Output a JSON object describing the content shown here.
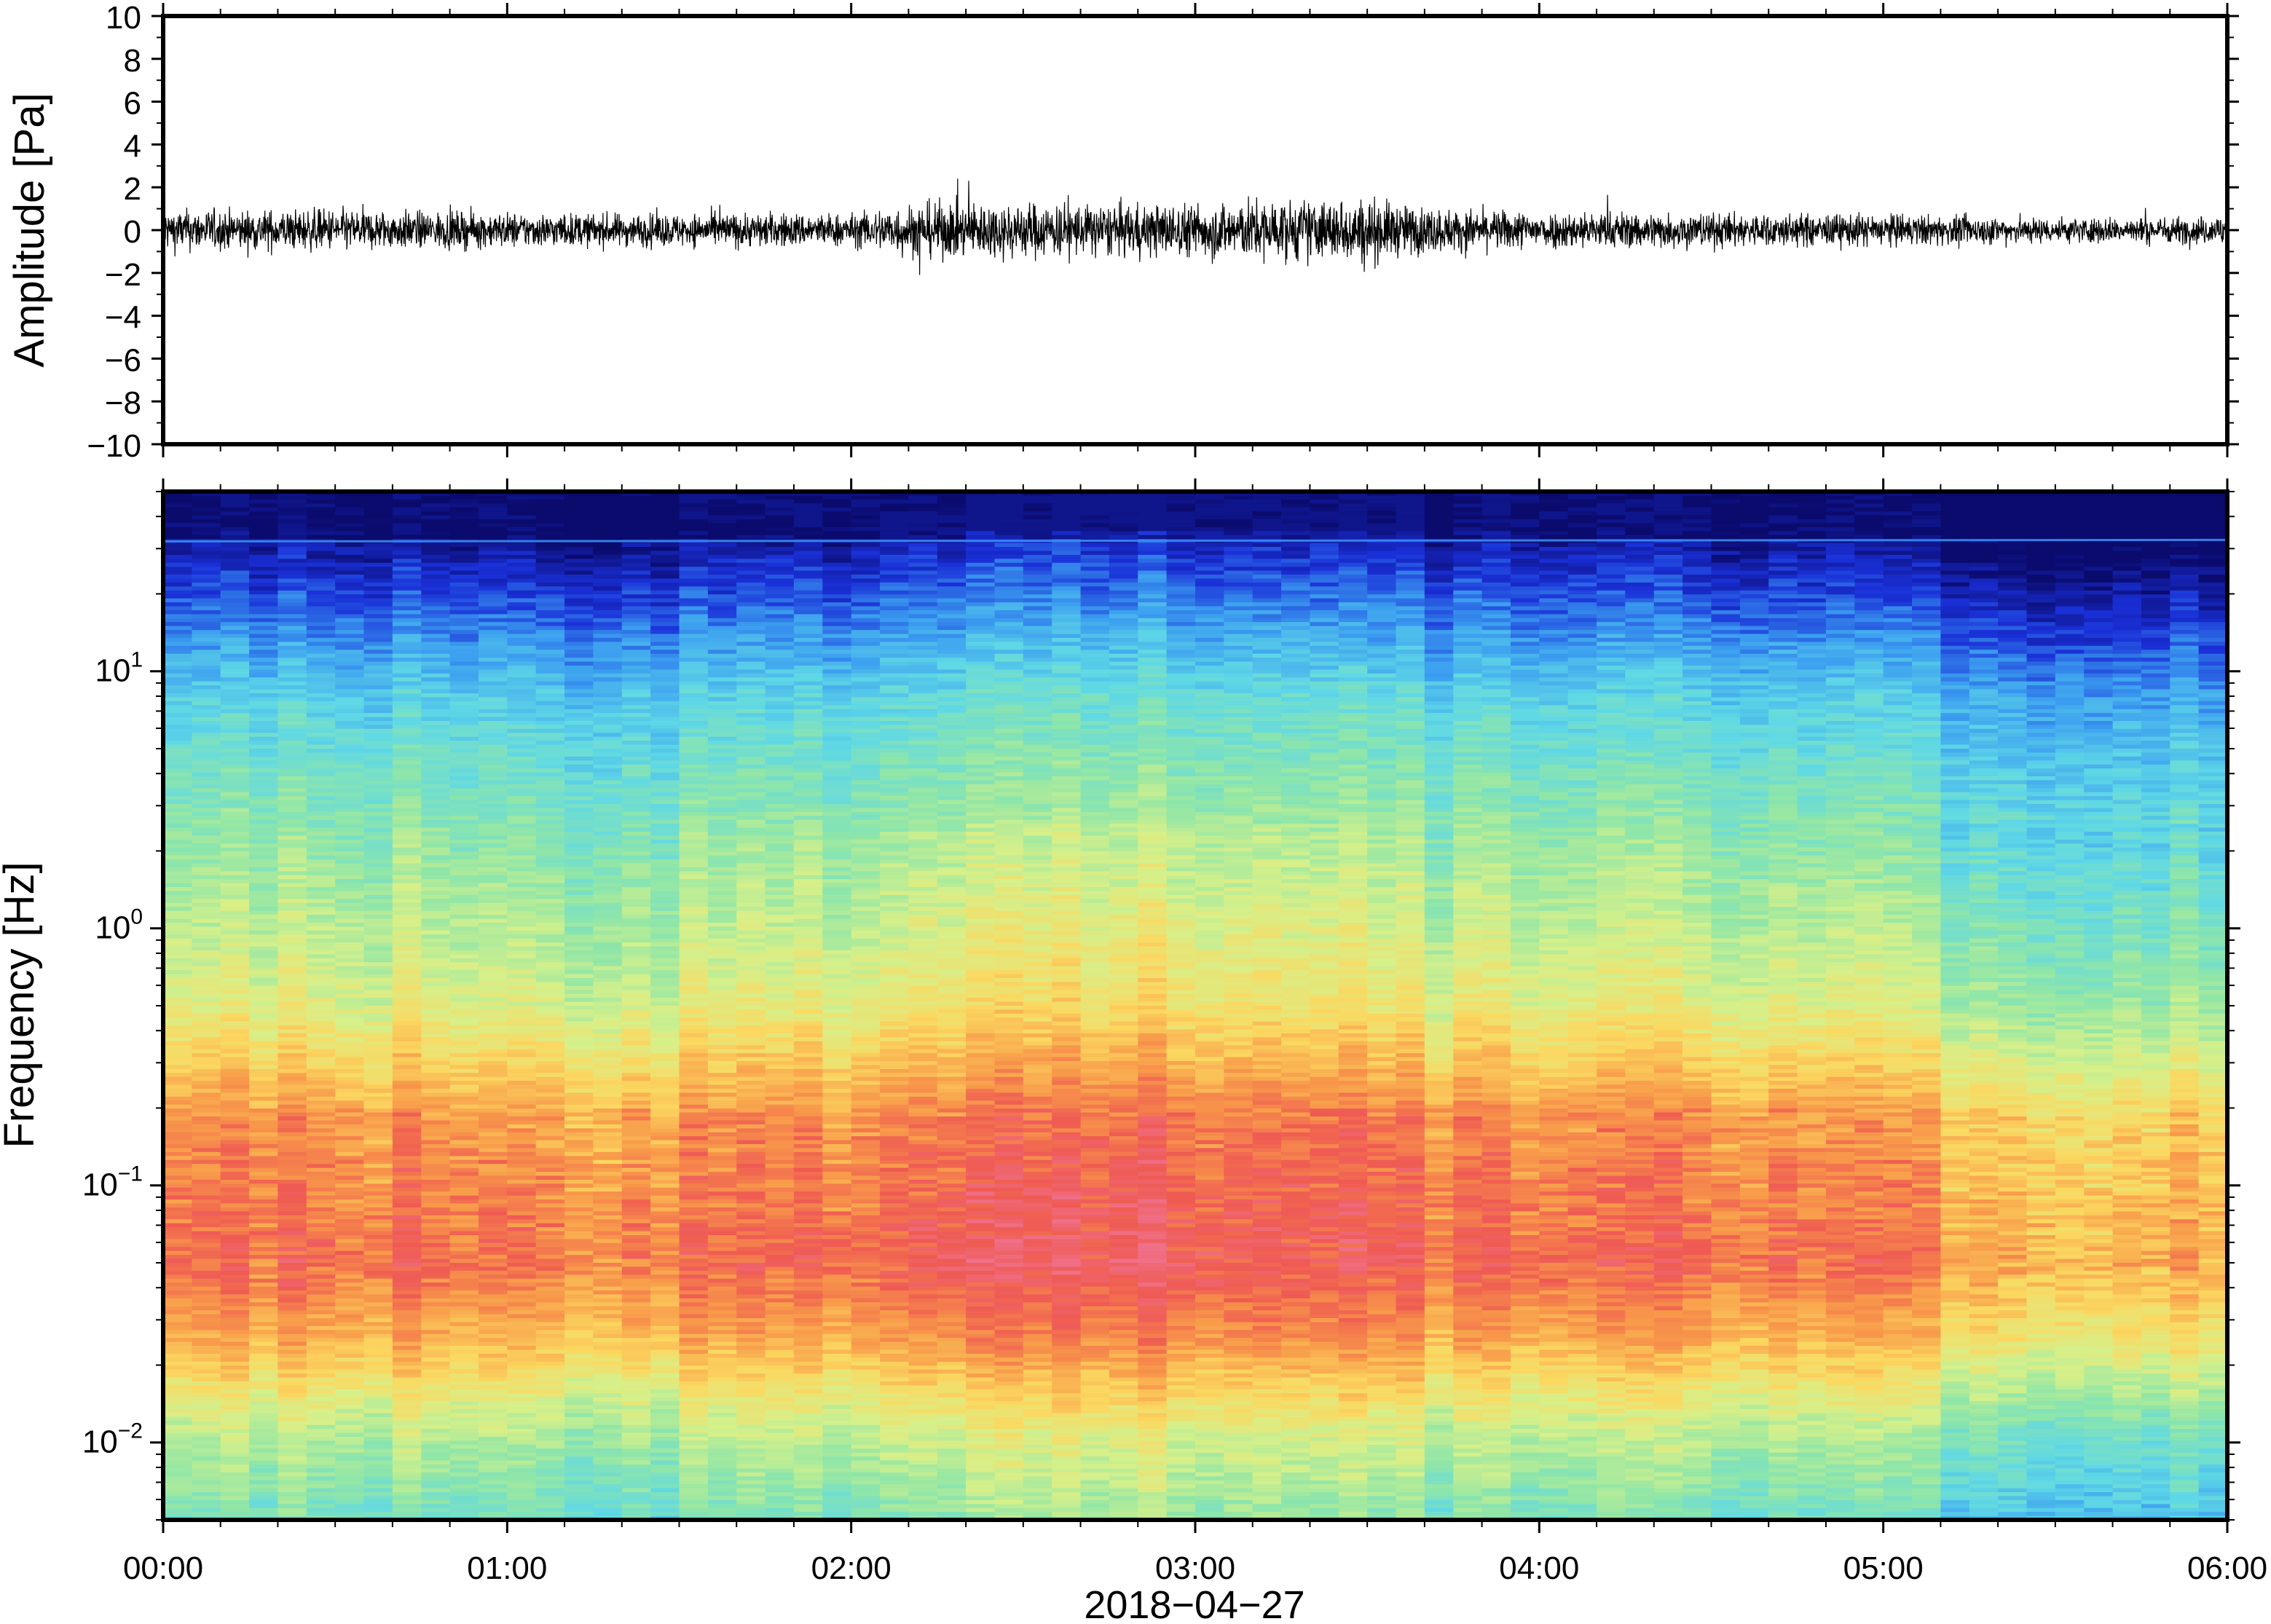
{
  "chart_data": [
    {
      "type": "line",
      "panel": "waveform",
      "ylabel": "Amplitude [Pa]",
      "ylim": [
        -10,
        10
      ],
      "yticks": [
        10,
        8,
        6,
        4,
        2,
        0,
        -2,
        -4,
        -6,
        -8,
        -10
      ],
      "ytick_labels": [
        "10",
        "8",
        "6",
        "4",
        "2",
        "0",
        "−2",
        "−4",
        "−6",
        "−8",
        "−10"
      ],
      "xlim_hours": [
        0,
        6
      ],
      "envelope": {
        "x_hours": [
          0,
          0.25,
          0.5,
          0.75,
          1.0,
          1.25,
          1.5,
          1.75,
          2.0,
          2.15,
          2.25,
          2.5,
          2.75,
          3.0,
          3.15,
          3.25,
          3.4,
          3.5,
          3.6,
          3.75,
          4.0,
          4.25,
          4.5,
          4.75,
          5.0,
          5.25,
          5.5,
          5.75,
          5.97,
          6.0
        ],
        "amplitude": [
          0.9,
          0.85,
          0.9,
          0.8,
          0.75,
          0.7,
          0.7,
          0.75,
          0.7,
          1.1,
          1.2,
          1.2,
          1.1,
          1.15,
          1.3,
          1.3,
          1.3,
          1.4,
          1.1,
          0.9,
          0.8,
          0.8,
          0.75,
          0.7,
          0.7,
          0.6,
          0.55,
          0.55,
          0.6,
          1.2
        ]
      },
      "grid": false
    },
    {
      "type": "heatmap",
      "panel": "spectrogram",
      "ylabel": "Frequency [Hz]",
      "xlabel": "2018−04−27",
      "yscale": "log",
      "ylim": [
        0.005,
        50
      ],
      "yticks": [
        {
          "base": "10",
          "exp": "1",
          "value": 10
        },
        {
          "base": "10",
          "exp": "0",
          "value": 1
        },
        {
          "base": "10",
          "exp": "−1",
          "value": 0.1
        },
        {
          "base": "10",
          "exp": "−2",
          "value": 0.01
        }
      ],
      "xticks": [
        "00:00",
        "01:00",
        "02:00",
        "03:00",
        "04:00",
        "05:00",
        "06:00"
      ],
      "xlim_hours": [
        0,
        6
      ],
      "colormap": "spectral (dark blue → blue → cyan → green → yellow → orange → red → pink)",
      "colors": [
        "#0b0b6e",
        "#1a30d8",
        "#3c9ff0",
        "#5fd8e6",
        "#8fe6a8",
        "#d6f08a",
        "#fbd860",
        "#f89a4a",
        "#ef5a52",
        "#f0708a"
      ],
      "features": {
        "tone_line_hz": 32,
        "peak_energy_hz": [
          0.04,
          0.15
        ],
        "high_energy_period_hours": [
          2.1,
          3.6
        ]
      },
      "grid": false
    }
  ]
}
